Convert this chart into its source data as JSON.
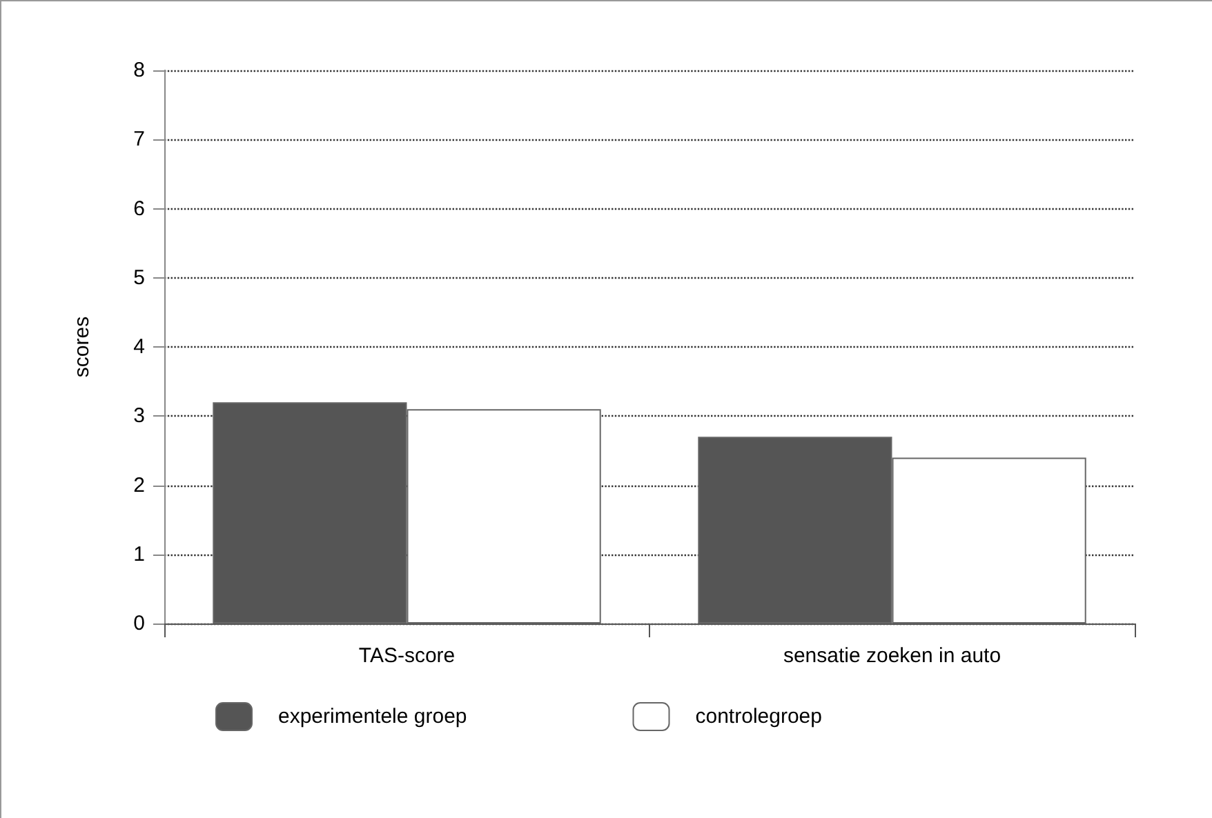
{
  "chart_data": {
    "type": "bar",
    "ylabel": "scores",
    "categories": [
      "TAS-score",
      "sensatie zoeken in auto"
    ],
    "series": [
      {
        "name": "experimentele groep",
        "color": "#555555",
        "values": [
          3.2,
          2.7
        ]
      },
      {
        "name": "controlegroep",
        "color": "#ffffff",
        "values": [
          3.1,
          2.4
        ]
      }
    ],
    "ylim": [
      0,
      8
    ],
    "yticks": [
      0,
      1,
      2,
      3,
      4,
      5,
      6,
      7,
      8
    ],
    "grid": "y",
    "legend": "bottom left",
    "line_style": "dotted"
  }
}
